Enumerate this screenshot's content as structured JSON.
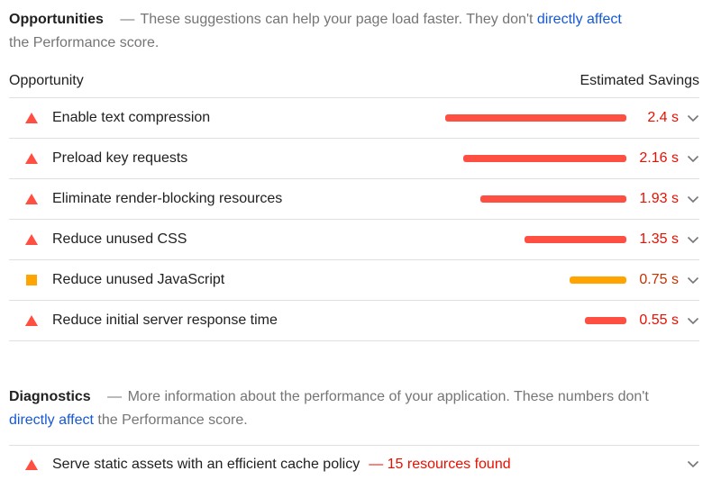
{
  "page": {
    "opportunities_section": {
      "title": "Opportunities",
      "dash": "—",
      "description_before_link": "These suggestions can help your page load faster. They don't",
      "link_text": "directly affect",
      "description_after_link": "the Performance score.",
      "table": {
        "column_left": "Opportunity",
        "column_right": "Estimated Savings",
        "rows": [
          {
            "label": "Enable text compression",
            "severity": "fail",
            "value_seconds": 2.4,
            "savings_label": "2.4 s"
          },
          {
            "label": "Preload key requests",
            "severity": "fail",
            "value_seconds": 2.16,
            "savings_label": "2.16 s"
          },
          {
            "label": "Eliminate render-blocking resources",
            "severity": "fail",
            "value_seconds": 1.93,
            "savings_label": "1.93 s"
          },
          {
            "label": "Reduce unused CSS",
            "severity": "fail",
            "value_seconds": 1.35,
            "savings_label": "1.35 s"
          },
          {
            "label": "Reduce unused JavaScript",
            "severity": "average",
            "value_seconds": 0.75,
            "savings_label": "0.75 s"
          },
          {
            "label": "Reduce initial server response time",
            "severity": "fail",
            "value_seconds": 0.55,
            "savings_label": "0.55 s"
          }
        ]
      }
    },
    "diagnostics_section": {
      "title": "Diagnostics",
      "dash": "—",
      "description_before_link": "More information about the performance of your application. These numbers don't",
      "link_text": "directly affect",
      "description_after_link": "the Performance score.",
      "row": {
        "label": "Serve static assets with an efficient cache policy",
        "annotation": "— 15 resources found",
        "severity": "fail"
      }
    },
    "colors": {
      "fail_icon_and_bar": "#ff4e42",
      "fail_value_text": "#eb0f00",
      "average_icon_and_bar": "#ffa400",
      "average_value_text": "#c33300",
      "link_blue": "#1558d6",
      "description_gray": "#757575",
      "divider_gray": "#e0e0e0",
      "chevron_gray": "#757575"
    },
    "icons": {
      "fail_severity": "triangle-up-icon",
      "average_severity": "square-icon",
      "expand": "chevron-down-icon"
    }
  },
  "chart_data": {
    "type": "bar",
    "orientation": "horizontal",
    "categories": [
      "Enable text compression",
      "Preload key requests",
      "Eliminate render-blocking resources",
      "Reduce unused CSS",
      "Reduce unused JavaScript",
      "Reduce initial server response time"
    ],
    "values": [
      2.4,
      2.16,
      1.93,
      1.35,
      0.75,
      0.55
    ],
    "unit": "s",
    "title": "Estimated Savings",
    "xlim": [
      0,
      2.4
    ]
  }
}
